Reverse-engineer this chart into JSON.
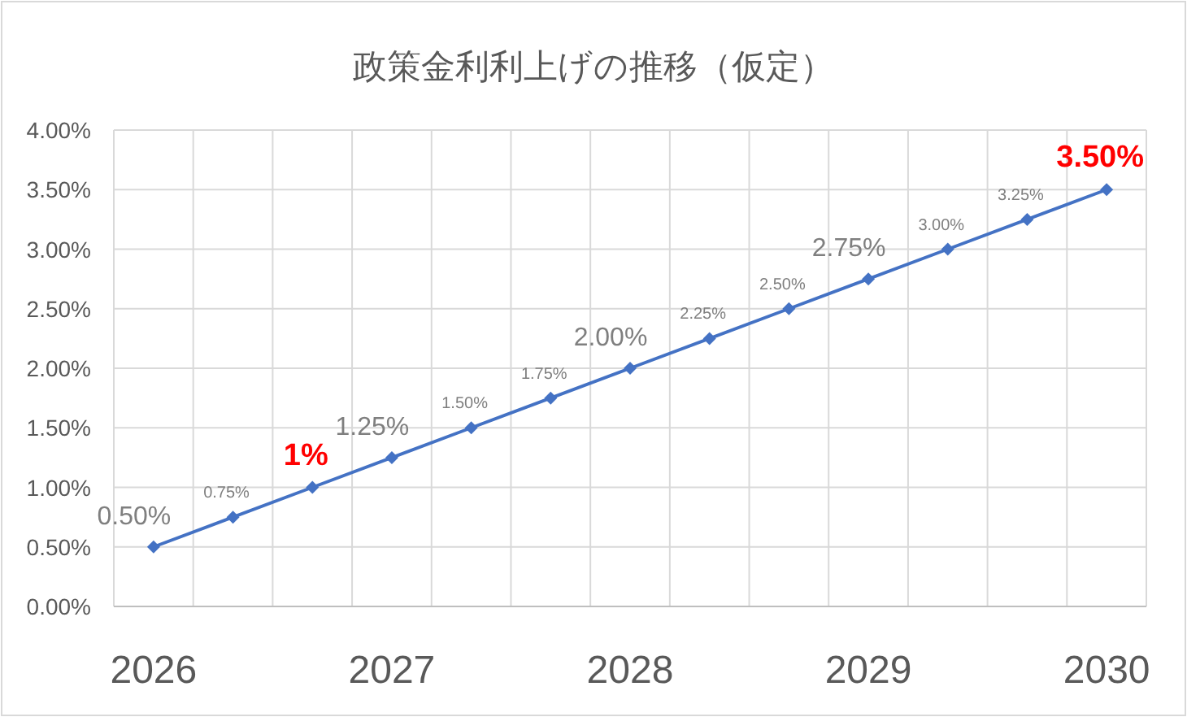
{
  "chart_data": {
    "type": "line",
    "title": "政策金利利上げの推移（仮定）",
    "categories": [
      "2026",
      null,
      null,
      "2027",
      null,
      null,
      "2028",
      null,
      null,
      "2029",
      null,
      null,
      "2030"
    ],
    "series": [
      {
        "color": "#4472c4",
        "values": [
          0.5,
          0.75,
          1.0,
          1.25,
          1.5,
          1.75,
          2.0,
          2.25,
          2.5,
          2.75,
          3.0,
          3.25,
          3.5
        ],
        "value_labels": [
          "0.50%",
          "0.75%",
          null,
          "1.25%",
          "1.50%",
          "1.75%",
          "2.00%",
          "2.25%",
          "2.50%",
          "2.75%",
          "3.00%",
          "3.25%",
          null
        ]
      }
    ],
    "annotations": [
      {
        "text": "1%",
        "y": 1.0
      },
      {
        "text": "3.50%",
        "x": "2030",
        "y": 3.5
      }
    ],
    "ylim": [
      0,
      4
    ],
    "yticks": [
      {
        "value": 0,
        "label": "0.00%"
      },
      {
        "value": 0.5,
        "label": "0.50%"
      },
      {
        "value": 1,
        "label": "1.00%"
      },
      {
        "value": 1.5,
        "label": "1.50%"
      },
      {
        "value": 2,
        "label": "2.00%"
      },
      {
        "value": 2.5,
        "label": "2.50%"
      },
      {
        "value": 3,
        "label": "3.00%"
      },
      {
        "value": 3.5,
        "label": "3.50%"
      },
      {
        "value": 4,
        "label": "4.00%"
      }
    ],
    "grid": true,
    "marker": "diamond",
    "line_style": "solid"
  }
}
